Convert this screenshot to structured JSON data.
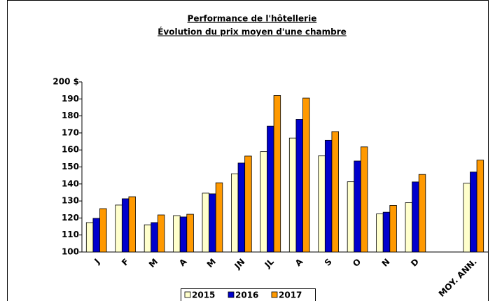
{
  "chart_data": {
    "type": "bar",
    "title": "Performance de l'hôtellerie",
    "subtitle": "Évolution du prix moyen d'une chambre",
    "categories": [
      "J",
      "F",
      "M",
      "A",
      "M",
      "JN",
      "JL",
      "A",
      "S",
      "O",
      "N",
      "D",
      null,
      "MOY. ANN."
    ],
    "series": [
      {
        "name": "2015",
        "color": "#ffffcc",
        "values": [
          117.3,
          127.6,
          116,
          121.4,
          134.6,
          146,
          159,
          167,
          156.5,
          141.3,
          122.4,
          129,
          null,
          140.4
        ]
      },
      {
        "name": "2016",
        "color": "#0000cc",
        "values": [
          119.8,
          131.3,
          117.3,
          120.6,
          134.2,
          152.3,
          174,
          178,
          165.7,
          153.5,
          123.4,
          141.2,
          null,
          147
        ]
      },
      {
        "name": "2017",
        "color": "#ff9900",
        "values": [
          125.5,
          132.5,
          121.8,
          122.2,
          140.7,
          156.4,
          192,
          190.5,
          170.8,
          161.8,
          127.4,
          145.6,
          null,
          154
        ]
      }
    ],
    "ylim": [
      100,
      200
    ],
    "yticks": [
      100,
      110,
      120,
      130,
      140,
      150,
      160,
      170,
      180,
      190,
      {
        "value": 200,
        "label": "200 $"
      }
    ],
    "grid": false,
    "legend": "bottom"
  }
}
